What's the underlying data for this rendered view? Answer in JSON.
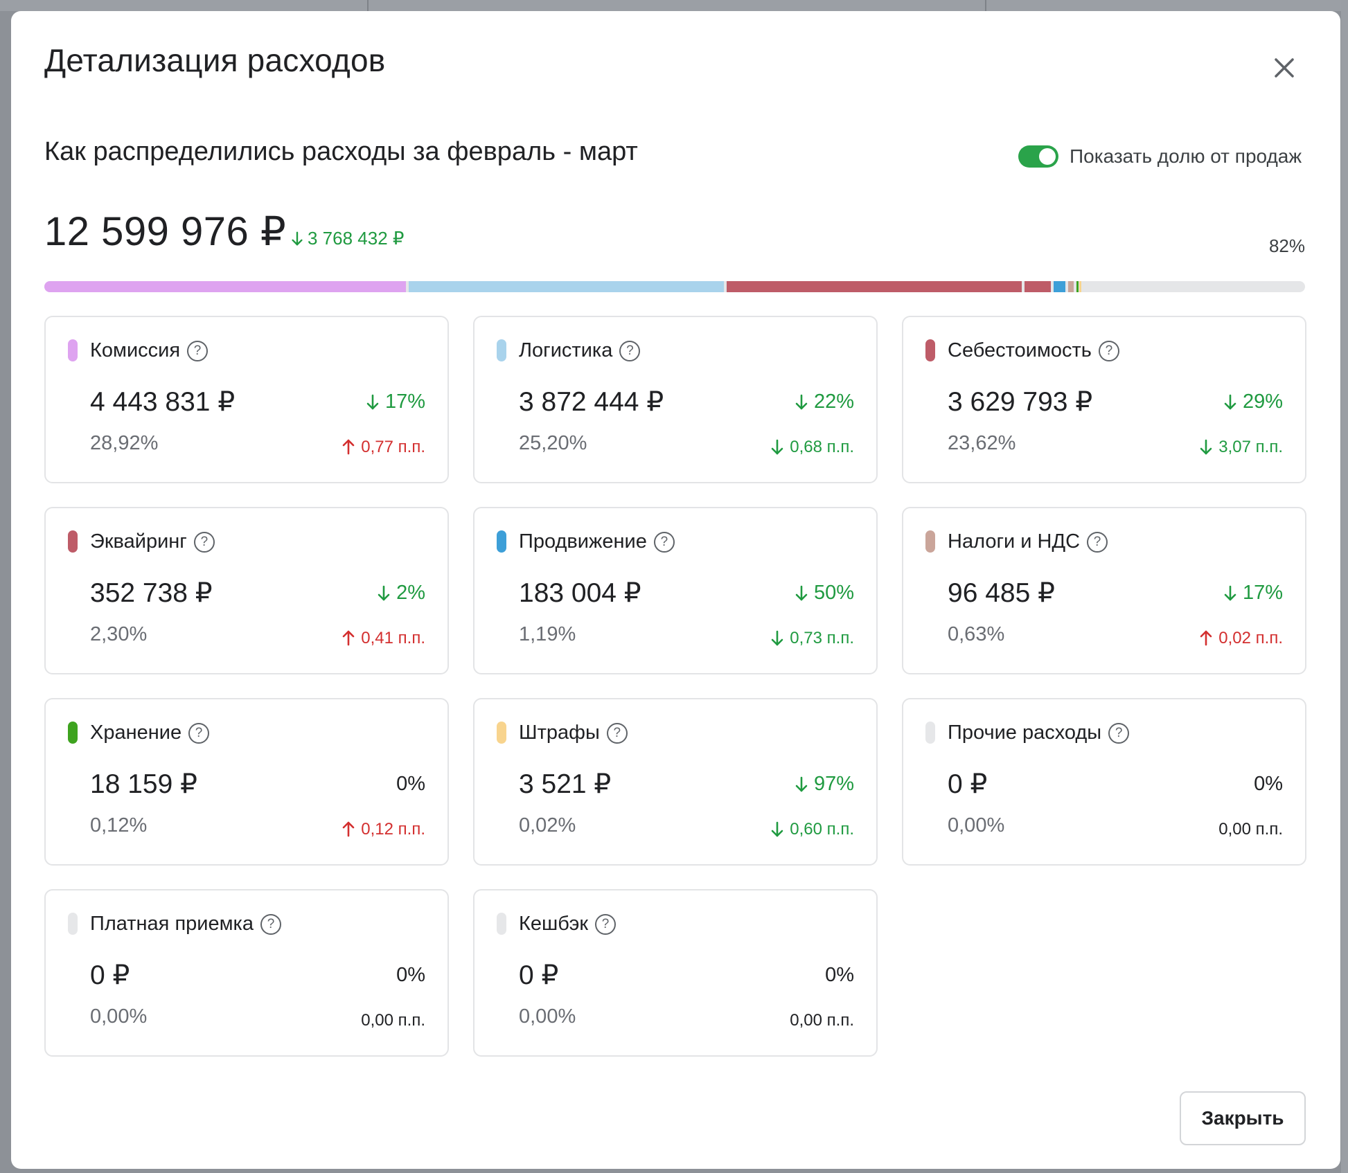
{
  "modal": {
    "title": "Детализация расходов",
    "subtitle": "Как распределились расходы за февраль - март",
    "toggle_label": "Показать долю от продаж",
    "toggle_on": true,
    "total": "12 599 976 ₽",
    "total_delta": "3 768 432 ₽",
    "total_share": "82%",
    "close_button": "Закрыть"
  },
  "chart_data": {
    "type": "bar",
    "title": "",
    "categories": [
      "Комиссия",
      "Логистика",
      "Себестоимость",
      "Эквайринг",
      "Продвижение",
      "Налоги и НДС",
      "Хранение",
      "Штрафы",
      "Прочие расходы",
      "Платная приемка",
      "Кешбэк"
    ],
    "values": [
      28.92,
      25.2,
      23.62,
      2.3,
      1.19,
      0.63,
      0.12,
      0.02,
      0.0,
      0.0,
      0.0
    ],
    "colors": [
      "#dea3f0",
      "#a9d3ec",
      "#be5c68",
      "#be5c68",
      "#3d9fd8",
      "#caa59a",
      "#3ea31f",
      "#f8d48e",
      "#e6e7e9",
      "#e6e7e9",
      "#e6e7e9"
    ],
    "total_share": 82
  },
  "cards": [
    {
      "name": "Комиссия",
      "color": "#dea3f0",
      "amount": "4 443 831 ₽",
      "delta": "17%",
      "delta_dir": "down",
      "share": "28,92%",
      "pp": "0,77 п.п.",
      "pp_dir": "up"
    },
    {
      "name": "Логистика",
      "color": "#a9d3ec",
      "amount": "3 872 444 ₽",
      "delta": "22%",
      "delta_dir": "down",
      "share": "25,20%",
      "pp": "0,68 п.п.",
      "pp_dir": "down"
    },
    {
      "name": "Себестоимость",
      "color": "#be5c68",
      "amount": "3 629 793 ₽",
      "delta": "29%",
      "delta_dir": "down",
      "share": "23,62%",
      "pp": "3,07 п.п.",
      "pp_dir": "down"
    },
    {
      "name": "Эквайринг",
      "color": "#be5c68",
      "amount": "352 738 ₽",
      "delta": "2%",
      "delta_dir": "down",
      "share": "2,30%",
      "pp": "0,41 п.п.",
      "pp_dir": "up"
    },
    {
      "name": "Продвижение",
      "color": "#3d9fd8",
      "amount": "183 004 ₽",
      "delta": "50%",
      "delta_dir": "down",
      "share": "1,19%",
      "pp": "0,73 п.п.",
      "pp_dir": "down"
    },
    {
      "name": "Налоги и НДС",
      "color": "#caa59a",
      "amount": "96 485 ₽",
      "delta": "17%",
      "delta_dir": "down",
      "share": "0,63%",
      "pp": "0,02 п.п.",
      "pp_dir": "up"
    },
    {
      "name": "Хранение",
      "color": "#3ea31f",
      "amount": "18 159 ₽",
      "delta": "0%",
      "delta_dir": "none",
      "share": "0,12%",
      "pp": "0,12 п.п.",
      "pp_dir": "up"
    },
    {
      "name": "Штрафы",
      "color": "#f8d48e",
      "amount": "3 521 ₽",
      "delta": "97%",
      "delta_dir": "down",
      "share": "0,02%",
      "pp": "0,60 п.п.",
      "pp_dir": "down"
    },
    {
      "name": "Прочие расходы",
      "color": "#e6e7e9",
      "amount": "0 ₽",
      "delta": "0%",
      "delta_dir": "none",
      "share": "0,00%",
      "pp": "0,00 п.п.",
      "pp_dir": "none"
    },
    {
      "name": "Платная приемка",
      "color": "#e6e7e9",
      "amount": "0 ₽",
      "delta": "0%",
      "delta_dir": "none",
      "share": "0,00%",
      "pp": "0,00 п.п.",
      "pp_dir": "none"
    },
    {
      "name": "Кешбэк",
      "color": "#e6e7e9",
      "amount": "0 ₽",
      "delta": "0%",
      "delta_dir": "none",
      "share": "0,00%",
      "pp": "0,00 п.п.",
      "pp_dir": "none"
    }
  ]
}
